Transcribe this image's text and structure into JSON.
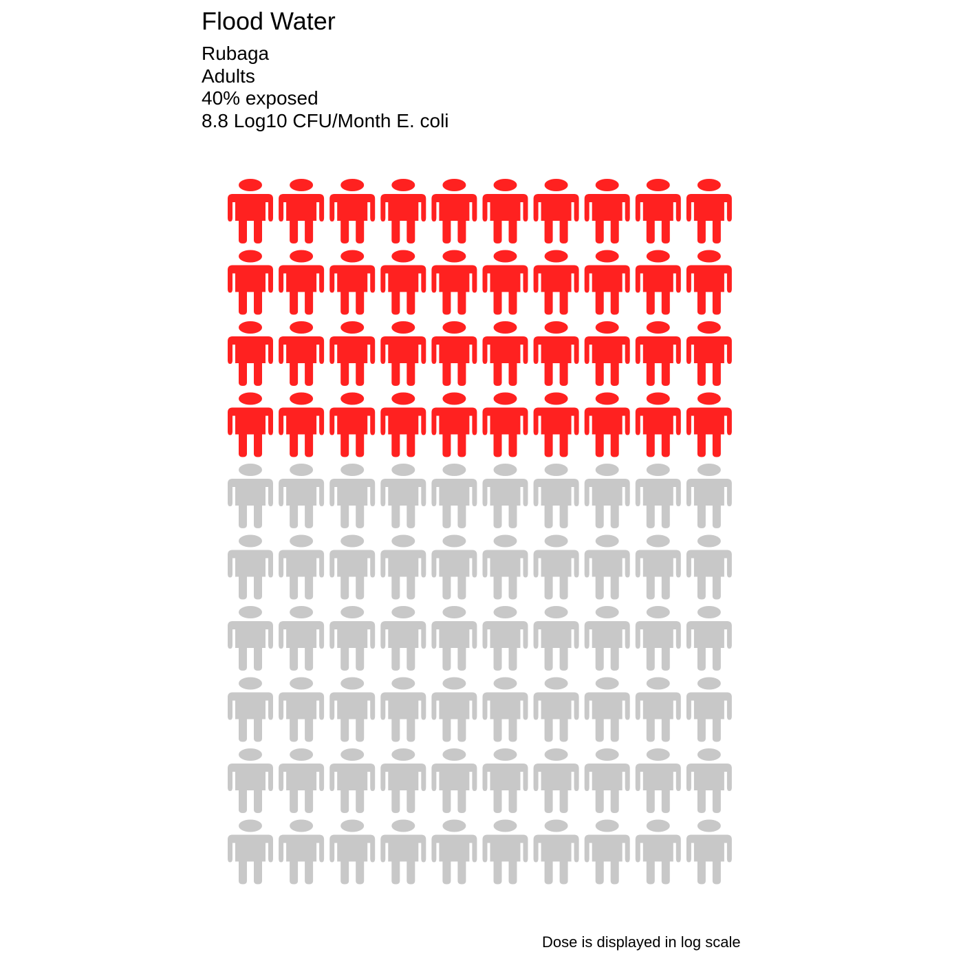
{
  "chart_data": {
    "type": "pictogram",
    "title": "Flood Water",
    "subtitle_lines": [
      "Rubaga",
      "Adults",
      "40% exposed",
      "8.8 Log10 CFU/Month E. coli"
    ],
    "caption": "Dose is displayed in log scale",
    "total_icons": 100,
    "exposed_count": 40,
    "grid_rows": 10,
    "grid_cols": 10,
    "fill_order": "row-major from top",
    "icon": "person-icon",
    "colors": {
      "exposed": "#ff2120",
      "not_exposed": "#c8c8c8"
    },
    "legend": "none",
    "grid": false
  }
}
